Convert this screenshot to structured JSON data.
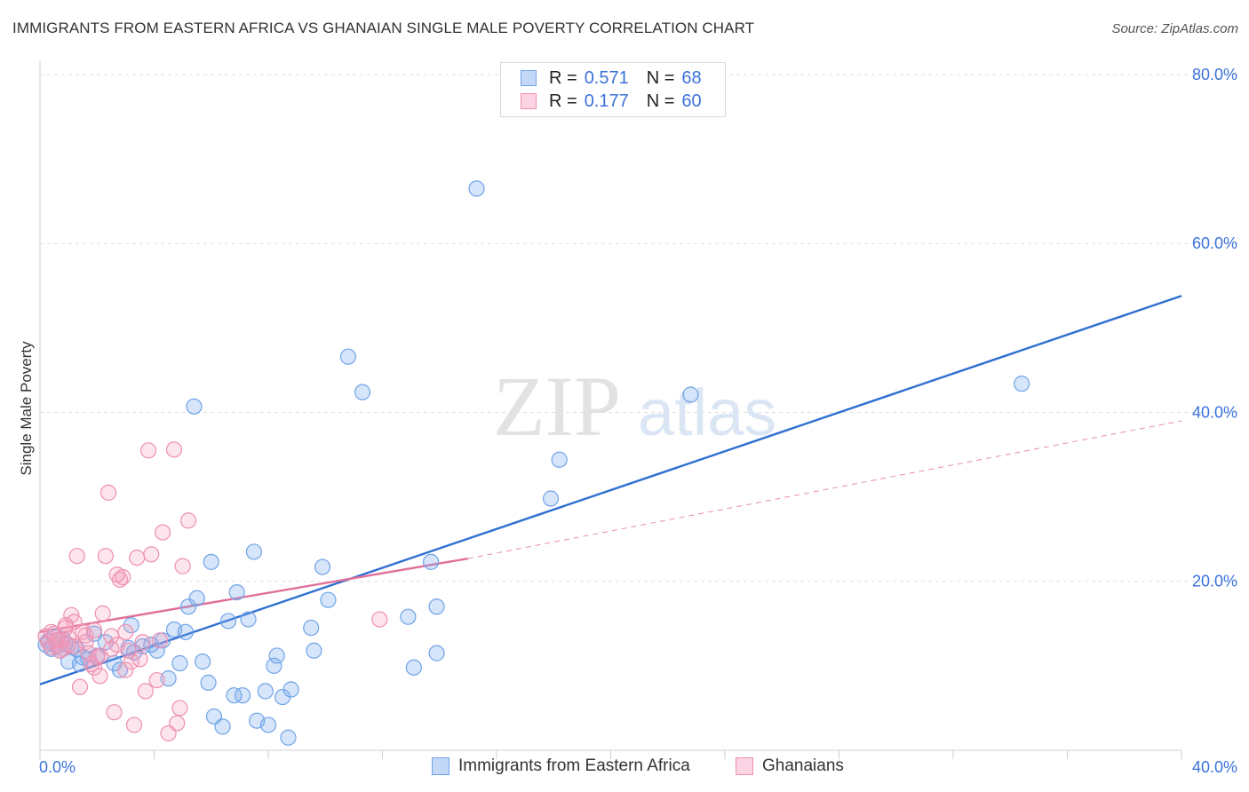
{
  "header": {
    "title": "IMMIGRANTS FROM EASTERN AFRICA VS GHANAIAN SINGLE MALE POVERTY CORRELATION CHART",
    "source": "Source: ZipAtlas.com"
  },
  "watermark": {
    "zip": "ZIP",
    "atlas": "atlas"
  },
  "legend_top": {
    "rows": [
      {
        "r_label": "R =",
        "r_value": "0.571",
        "n_label": "N =",
        "n_value": "68"
      },
      {
        "r_label": "R =",
        "r_value": "0.177",
        "n_label": "N =",
        "n_value": "60"
      }
    ]
  },
  "colors": {
    "blue": "#6fa3e8",
    "blue_fill": "rgba(120,168,235,0.30)",
    "blue_line": "#2f6fd1",
    "pink": "#ee8fb0",
    "pink_fill": "rgba(244,160,190,0.28)",
    "pink_line": "#e0709a",
    "axis_label": "#3b72d9",
    "grid": "#dddddd"
  },
  "chart_data": {
    "type": "scatter",
    "title": "IMMIGRANTS FROM EASTERN AFRICA VS GHANAIAN SINGLE MALE POVERTY CORRELATION CHART",
    "xlabel": "",
    "ylabel": "Single Male Poverty",
    "xlim": [
      0,
      40
    ],
    "ylim": [
      0,
      80
    ],
    "x_tick_labels": [
      "0.0%",
      "40.0%"
    ],
    "y_tick_labels": [
      {
        "value": 20,
        "label": "20.0%"
      },
      {
        "value": 40,
        "label": "40.0%"
      },
      {
        "value": 60,
        "label": "60.0%"
      },
      {
        "value": 80,
        "label": "80.0%"
      }
    ],
    "y_gridlines": [
      20,
      40,
      60,
      80
    ],
    "legend_position": "bottom-center",
    "series": [
      {
        "name": "Immigrants from Eastern Africa",
        "color_key": "blue",
        "r": 0.571,
        "n": 68,
        "trend": {
          "x": [
            0,
            40
          ],
          "y": [
            7.8,
            53.8
          ]
        },
        "points": [
          [
            0.2,
            12.5
          ],
          [
            0.3,
            13.0
          ],
          [
            0.4,
            12.0
          ],
          [
            0.5,
            13.5
          ],
          [
            0.6,
            12.3
          ],
          [
            0.7,
            11.8
          ],
          [
            0.8,
            13.2
          ],
          [
            0.9,
            12.6
          ],
          [
            1.0,
            10.5
          ],
          [
            1.1,
            12.2
          ],
          [
            1.3,
            12.0
          ],
          [
            1.5,
            11.0
          ],
          [
            1.7,
            10.8
          ],
          [
            1.9,
            13.8
          ],
          [
            2.0,
            11.2
          ],
          [
            2.3,
            12.8
          ],
          [
            2.6,
            10.3
          ],
          [
            2.8,
            9.5
          ],
          [
            3.1,
            12.1
          ],
          [
            3.3,
            11.6
          ],
          [
            3.6,
            12.3
          ],
          [
            3.9,
            12.5
          ],
          [
            4.1,
            11.8
          ],
          [
            4.3,
            13.0
          ],
          [
            4.5,
            8.5
          ],
          [
            4.7,
            14.3
          ],
          [
            4.9,
            10.3
          ],
          [
            5.1,
            14.0
          ],
          [
            5.2,
            17.0
          ],
          [
            5.4,
            40.7
          ],
          [
            5.5,
            18.0
          ],
          [
            5.7,
            10.5
          ],
          [
            5.9,
            8.0
          ],
          [
            6.0,
            22.3
          ],
          [
            6.1,
            4.0
          ],
          [
            6.4,
            2.8
          ],
          [
            6.6,
            15.3
          ],
          [
            6.8,
            6.5
          ],
          [
            6.9,
            18.7
          ],
          [
            7.1,
            6.5
          ],
          [
            7.3,
            15.5
          ],
          [
            7.5,
            23.5
          ],
          [
            7.6,
            3.5
          ],
          [
            7.9,
            7.0
          ],
          [
            8.0,
            3.0
          ],
          [
            8.2,
            10.0
          ],
          [
            8.3,
            11.2
          ],
          [
            8.5,
            6.3
          ],
          [
            8.7,
            1.5
          ],
          [
            8.8,
            7.2
          ],
          [
            9.5,
            14.5
          ],
          [
            9.6,
            11.8
          ],
          [
            9.9,
            21.7
          ],
          [
            10.1,
            17.8
          ],
          [
            10.8,
            46.6
          ],
          [
            11.3,
            42.4
          ],
          [
            12.9,
            15.8
          ],
          [
            13.1,
            9.8
          ],
          [
            13.7,
            22.3
          ],
          [
            13.9,
            17.0
          ],
          [
            13.9,
            11.5
          ],
          [
            15.3,
            66.5
          ],
          [
            17.9,
            29.8
          ],
          [
            18.2,
            34.4
          ],
          [
            22.8,
            42.1
          ],
          [
            34.4,
            43.4
          ],
          [
            3.2,
            14.8
          ],
          [
            1.4,
            10.2
          ]
        ]
      },
      {
        "name": "Ghanaians",
        "color_key": "pink",
        "r": 0.177,
        "n": 60,
        "trend": {
          "x": [
            0,
            15
          ],
          "y": [
            14.0,
            22.7
          ]
        },
        "trend_dashed": {
          "x": [
            15,
            40
          ],
          "y": [
            22.7,
            39.0
          ]
        },
        "points": [
          [
            0.2,
            13.5
          ],
          [
            0.3,
            12.8
          ],
          [
            0.4,
            12.2
          ],
          [
            0.5,
            13.8
          ],
          [
            0.6,
            12.5
          ],
          [
            0.7,
            13.1
          ],
          [
            0.8,
            12.0
          ],
          [
            0.9,
            14.5
          ],
          [
            1.0,
            13.3
          ],
          [
            1.1,
            16.0
          ],
          [
            1.2,
            15.2
          ],
          [
            1.3,
            23.0
          ],
          [
            1.4,
            7.5
          ],
          [
            1.5,
            14.0
          ],
          [
            1.6,
            12.8
          ],
          [
            1.7,
            11.5
          ],
          [
            1.8,
            10.2
          ],
          [
            1.9,
            9.8
          ],
          [
            2.0,
            11.0
          ],
          [
            2.1,
            8.8
          ],
          [
            2.2,
            16.2
          ],
          [
            2.3,
            23.0
          ],
          [
            2.4,
            30.5
          ],
          [
            2.5,
            13.5
          ],
          [
            2.6,
            4.5
          ],
          [
            2.7,
            12.5
          ],
          [
            2.8,
            20.2
          ],
          [
            2.9,
            20.5
          ],
          [
            3.0,
            14.0
          ],
          [
            3.1,
            11.8
          ],
          [
            3.2,
            10.5
          ],
          [
            3.3,
            3.0
          ],
          [
            3.4,
            22.8
          ],
          [
            3.5,
            10.8
          ],
          [
            3.6,
            12.8
          ],
          [
            3.7,
            7.0
          ],
          [
            3.8,
            35.5
          ],
          [
            3.9,
            23.2
          ],
          [
            4.1,
            8.3
          ],
          [
            4.2,
            13.0
          ],
          [
            4.3,
            25.8
          ],
          [
            4.5,
            2.0
          ],
          [
            4.7,
            35.6
          ],
          [
            4.8,
            3.2
          ],
          [
            4.9,
            5.0
          ],
          [
            5.0,
            21.8
          ],
          [
            5.2,
            27.2
          ],
          [
            0.9,
            14.8
          ],
          [
            1.2,
            12.3
          ],
          [
            1.6,
            13.6
          ],
          [
            2.1,
            11.2
          ],
          [
            2.5,
            12.0
          ],
          [
            3.0,
            9.5
          ],
          [
            11.9,
            15.5
          ],
          [
            0.4,
            14.0
          ],
          [
            0.7,
            11.8
          ],
          [
            1.9,
            14.2
          ],
          [
            2.7,
            20.8
          ],
          [
            0.6,
            13.0
          ],
          [
            1.0,
            12.5
          ]
        ]
      }
    ]
  },
  "bottom_legend": {
    "items": [
      {
        "label": "Immigrants from Eastern Africa"
      },
      {
        "label": "Ghanaians"
      }
    ]
  }
}
